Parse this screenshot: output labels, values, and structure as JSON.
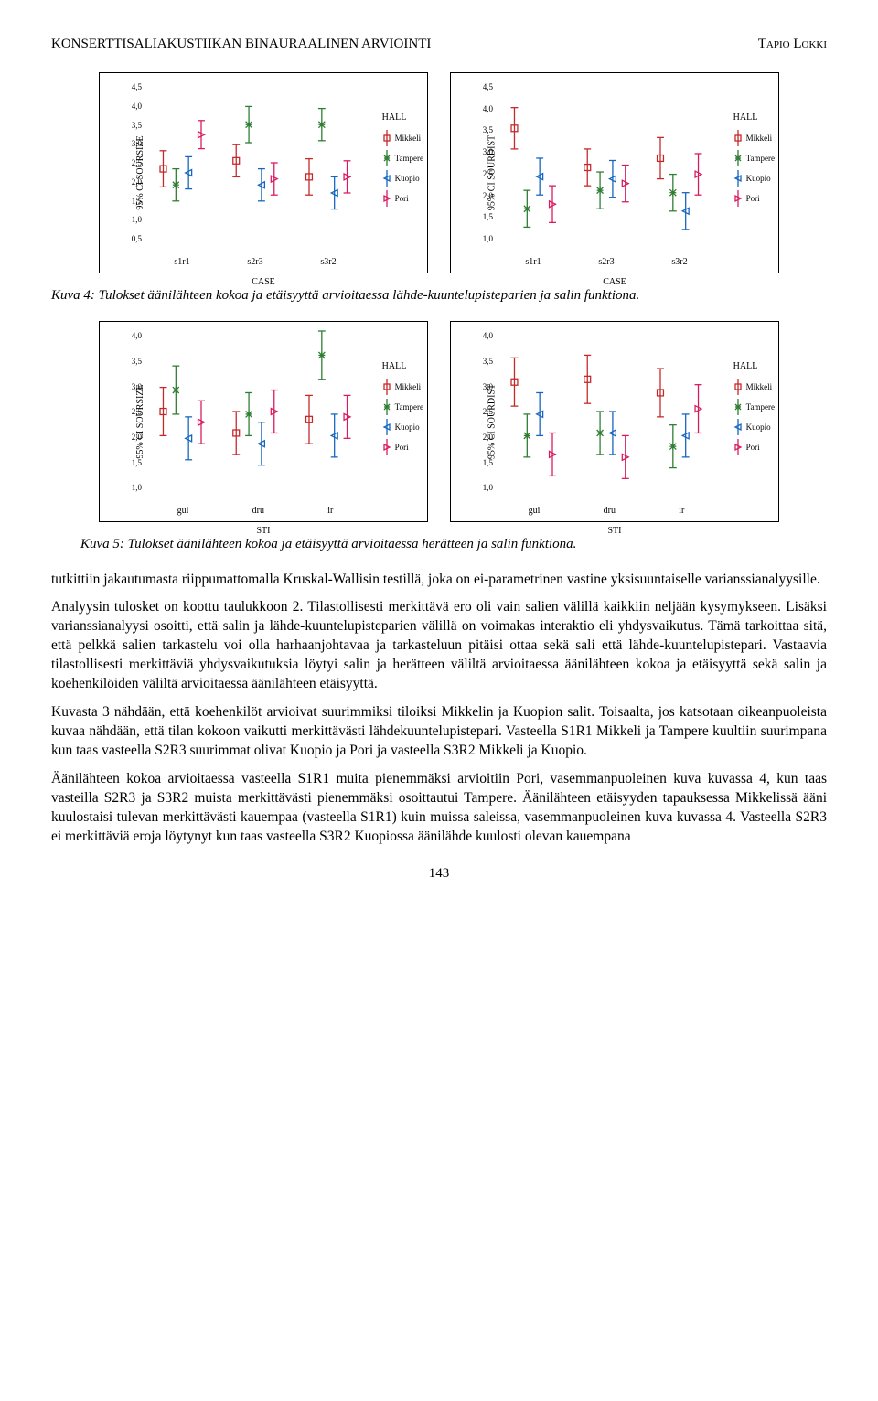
{
  "header": {
    "left": "KONSERTTISALIAKUSTIIKAN BINAURAALINEN ARVIOINTI",
    "right": "Tapio Lokki"
  },
  "legend": {
    "title": "HALL",
    "items": [
      {
        "label": "Mikkeli",
        "color": "#c62828",
        "shape": "square"
      },
      {
        "label": "Tampere",
        "color": "#2e7d32",
        "shape": "star"
      },
      {
        "label": "Kuopio",
        "color": "#1565c0",
        "shape": "triangle-left"
      },
      {
        "label": "Pori",
        "color": "#d81b60",
        "shape": "triangle-right"
      }
    ]
  },
  "charts_row1": [
    {
      "id": "ch1",
      "ylabel": "95% CI SOURSIZE",
      "xlabel": "CASE",
      "ymin": 0.5,
      "ymax": 4.5,
      "ytick_step": 0.5,
      "xticks": [
        "s1r1",
        "s2r3",
        "s3r2"
      ],
      "series": {
        "Mikkeli": [
          {
            "m": 2.35,
            "lo": 1.9,
            "hi": 2.8
          },
          {
            "m": 2.55,
            "lo": 2.15,
            "hi": 2.95
          },
          {
            "m": 2.15,
            "lo": 1.7,
            "hi": 2.6
          }
        ],
        "Tampere": [
          {
            "m": 1.95,
            "lo": 1.55,
            "hi": 2.35
          },
          {
            "m": 3.45,
            "lo": 3.0,
            "hi": 3.9
          },
          {
            "m": 3.45,
            "lo": 3.05,
            "hi": 3.85
          }
        ],
        "Kuopio": [
          {
            "m": 2.25,
            "lo": 1.85,
            "hi": 2.65
          },
          {
            "m": 1.95,
            "lo": 1.55,
            "hi": 2.35
          },
          {
            "m": 1.75,
            "lo": 1.35,
            "hi": 2.15
          }
        ],
        "Pori": [
          {
            "m": 3.2,
            "lo": 2.85,
            "hi": 3.55
          },
          {
            "m": 2.1,
            "lo": 1.7,
            "hi": 2.5
          },
          {
            "m": 2.15,
            "lo": 1.75,
            "hi": 2.55
          }
        ]
      }
    },
    {
      "id": "ch2",
      "ylabel": "95% CI SOURDIST",
      "xlabel": "CASE",
      "ymin": 1.0,
      "ymax": 4.5,
      "ytick_step": 0.5,
      "xticks": [
        "s1r1",
        "s2r3",
        "s3r2"
      ],
      "series": {
        "Mikkeli": [
          {
            "m": 3.5,
            "lo": 3.05,
            "hi": 3.95
          },
          {
            "m": 2.65,
            "lo": 2.25,
            "hi": 3.05
          },
          {
            "m": 2.85,
            "lo": 2.4,
            "hi": 3.3
          }
        ],
        "Tampere": [
          {
            "m": 1.75,
            "lo": 1.35,
            "hi": 2.15
          },
          {
            "m": 2.15,
            "lo": 1.75,
            "hi": 2.55
          },
          {
            "m": 2.1,
            "lo": 1.7,
            "hi": 2.5
          }
        ],
        "Kuopio": [
          {
            "m": 2.45,
            "lo": 2.05,
            "hi": 2.85
          },
          {
            "m": 2.4,
            "lo": 2.0,
            "hi": 2.8
          },
          {
            "m": 1.7,
            "lo": 1.3,
            "hi": 2.1
          }
        ],
        "Pori": [
          {
            "m": 1.85,
            "lo": 1.45,
            "hi": 2.25
          },
          {
            "m": 2.3,
            "lo": 1.9,
            "hi": 2.7
          },
          {
            "m": 2.5,
            "lo": 2.05,
            "hi": 2.95
          }
        ]
      }
    }
  ],
  "charts_row2": [
    {
      "id": "ch3",
      "ylabel": "95% CI SOURSIZE",
      "xlabel": "STI",
      "ymin": 1.0,
      "ymax": 4.0,
      "ytick_step": 0.5,
      "xticks": [
        "gui",
        "dru",
        "ir"
      ],
      "series": {
        "Mikkeli": [
          {
            "m": 2.5,
            "lo": 2.05,
            "hi": 2.95
          },
          {
            "m": 2.1,
            "lo": 1.7,
            "hi": 2.5
          },
          {
            "m": 2.35,
            "lo": 1.9,
            "hi": 2.8
          }
        ],
        "Tampere": [
          {
            "m": 2.9,
            "lo": 2.45,
            "hi": 3.35
          },
          {
            "m": 2.45,
            "lo": 2.05,
            "hi": 2.85
          },
          {
            "m": 3.55,
            "lo": 3.1,
            "hi": 4.0
          }
        ],
        "Kuopio": [
          {
            "m": 2.0,
            "lo": 1.6,
            "hi": 2.4
          },
          {
            "m": 1.9,
            "lo": 1.5,
            "hi": 2.3
          },
          {
            "m": 2.05,
            "lo": 1.65,
            "hi": 2.45
          }
        ],
        "Pori": [
          {
            "m": 2.3,
            "lo": 1.9,
            "hi": 2.7
          },
          {
            "m": 2.5,
            "lo": 2.1,
            "hi": 2.9
          },
          {
            "m": 2.4,
            "lo": 2.0,
            "hi": 2.8
          }
        ]
      }
    },
    {
      "id": "ch4",
      "ylabel": "95% CI SOURDIST",
      "xlabel": "STI",
      "ymin": 1.0,
      "ymax": 4.0,
      "ytick_step": 0.5,
      "xticks": [
        "gui",
        "dru",
        "ir"
      ],
      "series": {
        "Mikkeli": [
          {
            "m": 3.05,
            "lo": 2.6,
            "hi": 3.5
          },
          {
            "m": 3.1,
            "lo": 2.65,
            "hi": 3.55
          },
          {
            "m": 2.85,
            "lo": 2.4,
            "hi": 3.3
          }
        ],
        "Tampere": [
          {
            "m": 2.05,
            "lo": 1.65,
            "hi": 2.45
          },
          {
            "m": 2.1,
            "lo": 1.7,
            "hi": 2.5
          },
          {
            "m": 1.85,
            "lo": 1.45,
            "hi": 2.25
          }
        ],
        "Kuopio": [
          {
            "m": 2.45,
            "lo": 2.05,
            "hi": 2.85
          },
          {
            "m": 2.1,
            "lo": 1.7,
            "hi": 2.5
          },
          {
            "m": 2.05,
            "lo": 1.65,
            "hi": 2.45
          }
        ],
        "Pori": [
          {
            "m": 1.7,
            "lo": 1.3,
            "hi": 2.1
          },
          {
            "m": 1.65,
            "lo": 1.25,
            "hi": 2.05
          },
          {
            "m": 2.55,
            "lo": 2.1,
            "hi": 3.0
          }
        ]
      }
    }
  ],
  "captions": {
    "fig4": "Kuva 4: Tulokset äänilähteen kokoa ja etäisyyttä arvioitaessa lähde-kuuntelupisteparien ja salin funktiona.",
    "fig5": "Kuva 5: Tulokset äänilähteen kokoa ja etäisyyttä arvioitaessa herätteen ja salin funktiona."
  },
  "paragraphs": [
    "tutkittiin jakautumasta riippumattomalla Kruskal-Wallisin testillä, joka on ei-parametrinen vastine yksisuuntaiselle varianssianalyysille.",
    "Analyysin tulosket on koottu taulukkoon 2. Tilastollisesti merkittävä ero oli vain salien välillä kaikkiin neljään kysymykseen. Lisäksi varianssianalyysi osoitti, että salin ja lähde-kuuntelupisteparien välillä on voimakas interaktio eli yhdysvaikutus. Tämä tarkoittaa sitä, että pelkkä salien tarkastelu voi olla harhaanjohtavaa ja tarkasteluun pitäisi ottaa sekä sali että lähde-kuuntelupistepari. Vastaavia tilastollisesti merkittäviä yhdysvaikutuksia löytyi salin ja herätteen väliltä arvioitaessa äänilähteen kokoa ja etäisyyttä sekä salin ja koehenkilöiden väliltä arvioitaessa äänilähteen etäisyyttä.",
    "Kuvasta 3 nähdään, että koehenkilöt arvioivat suurimmiksi tiloiksi Mikkelin ja Kuopion salit. Toisaalta, jos katsotaan oikeanpuoleista kuvaa nähdään, että tilan kokoon vaikutti merkittävästi lähdekuuntelupistepari. Vasteella S1R1 Mikkeli ja Tampere kuultiin suurimpana kun taas vasteella S2R3 suurimmat olivat Kuopio ja Pori ja vasteella S3R2 Mikkeli ja Kuopio.",
    "Äänilähteen kokoa arvioitaessa vasteella S1R1 muita pienemmäksi arvioitiin Pori, vasemmanpuoleinen kuva kuvassa 4, kun taas vasteilla S2R3 ja S3R2 muista merkittävästi pienemmäksi osoittautui Tampere. Äänilähteen etäisyyden tapauksessa Mikkelissä ääni kuulostaisi tulevan merkittävästi kauempaa (vasteella S1R1) kuin muissa saleissa, vasemmanpuoleinen kuva kuvassa 4. Vasteella S2R3 ei merkittäviä eroja löytynyt kun taas vasteella S3R2 Kuopiossa äänilähde kuulosti olevan kauempana"
  ],
  "page_number": "143",
  "colors": {
    "Mikkeli": "#c62828",
    "Tampere": "#2e7d32",
    "Kuopio": "#1565c0",
    "Pori": "#d81b60"
  }
}
